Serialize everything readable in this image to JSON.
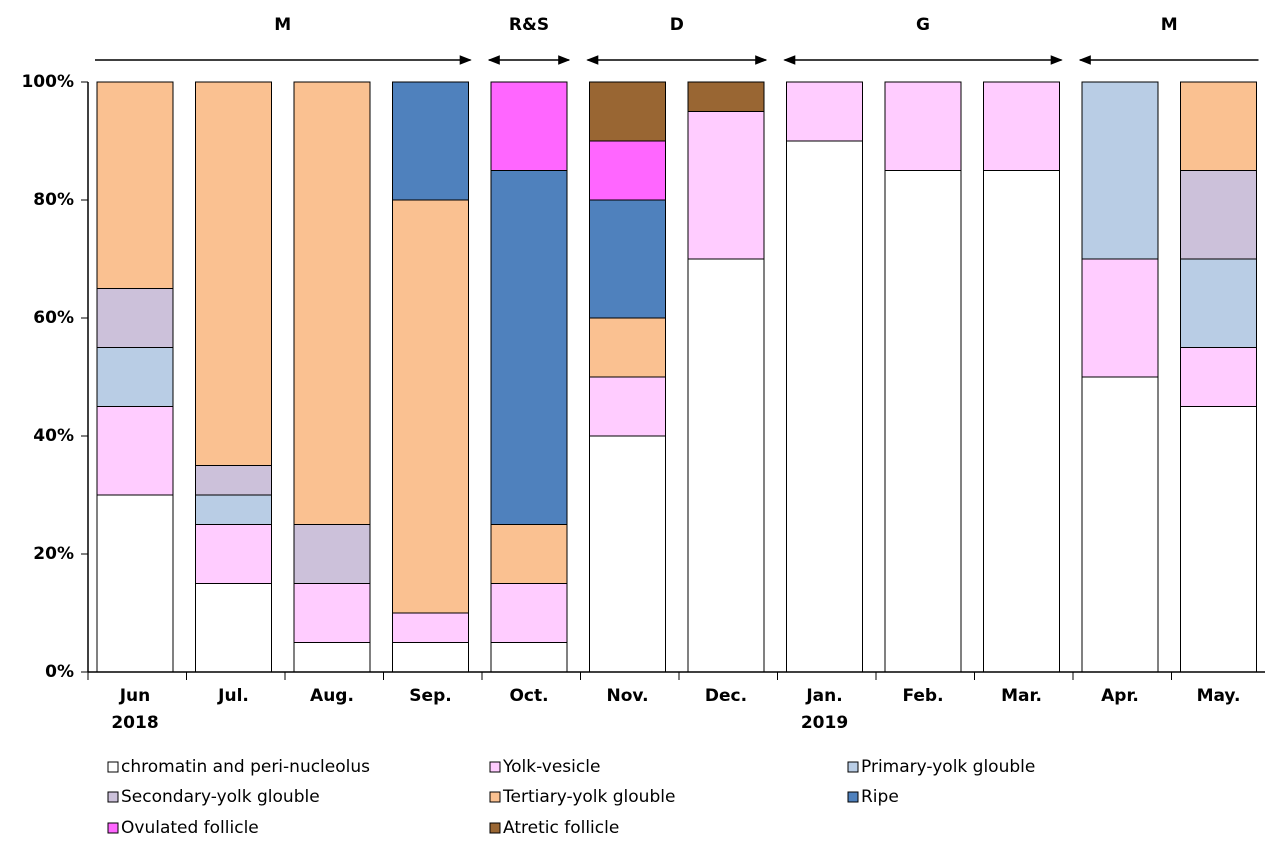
{
  "chart_data": {
    "type": "stacked_bar",
    "categories": [
      "Jun",
      "Jul.",
      "Aug.",
      "Sep.",
      "Oct.",
      "Nov.",
      "Dec.",
      "Jan.",
      "Feb.",
      "Mar.",
      "Apr.",
      "May."
    ],
    "x_sublabels": [
      "2018",
      null,
      null,
      null,
      null,
      null,
      null,
      "2019",
      null,
      null,
      null,
      null
    ],
    "series": [
      {
        "name": "chromatin and peri-nucleolus",
        "color": "#ffffff",
        "values": [
          30,
          15,
          5,
          5,
          5,
          40,
          70,
          90,
          85,
          85,
          50,
          45
        ]
      },
      {
        "name": "Yolk-vesicle",
        "color": "#ffccff",
        "values": [
          15,
          10,
          10,
          5,
          10,
          10,
          25,
          10,
          15,
          15,
          20,
          10
        ]
      },
      {
        "name": "Primary-yolk glouble",
        "color": "#b9cde5",
        "values": [
          10,
          5,
          0,
          0,
          0,
          0,
          0,
          0,
          0,
          0,
          30,
          15
        ]
      },
      {
        "name": "Secondary-yolk glouble",
        "color": "#ccc1da",
        "values": [
          10,
          5,
          10,
          0,
          0,
          0,
          0,
          0,
          0,
          0,
          0,
          15
        ]
      },
      {
        "name": "Tertiary-yolk glouble",
        "color": "#fac191",
        "values": [
          35,
          65,
          75,
          70,
          10,
          10,
          0,
          0,
          0,
          0,
          0,
          15
        ]
      },
      {
        "name": "Ripe",
        "color": "#4f81bd",
        "values": [
          0,
          0,
          0,
          20,
          60,
          20,
          0,
          0,
          0,
          0,
          0,
          0
        ]
      },
      {
        "name": "Ovulated follicle",
        "color": "#ff66ff",
        "values": [
          0,
          0,
          0,
          0,
          15,
          10,
          0,
          0,
          0,
          0,
          0,
          0
        ]
      },
      {
        "name": "Atretic follicle",
        "color": "#996633",
        "values": [
          0,
          0,
          0,
          0,
          0,
          10,
          5,
          0,
          0,
          0,
          0,
          0
        ]
      }
    ],
    "phases": [
      {
        "label": "M",
        "start": 0,
        "end": 3
      },
      {
        "label": "R&S",
        "start": 4,
        "end": 4
      },
      {
        "label": "D",
        "start": 5,
        "end": 6
      },
      {
        "label": "G",
        "start": 7,
        "end": 9
      },
      {
        "label": "M",
        "start": 10,
        "end": 11
      }
    ],
    "ylim": [
      0,
      100
    ],
    "yticks": [
      {
        "value": 0,
        "label": "0%"
      },
      {
        "value": 20,
        "label": "20%"
      },
      {
        "value": 40,
        "label": "40%"
      },
      {
        "value": 60,
        "label": "60%"
      },
      {
        "value": 80,
        "label": "80%"
      },
      {
        "value": 100,
        "label": "100%"
      }
    ]
  }
}
